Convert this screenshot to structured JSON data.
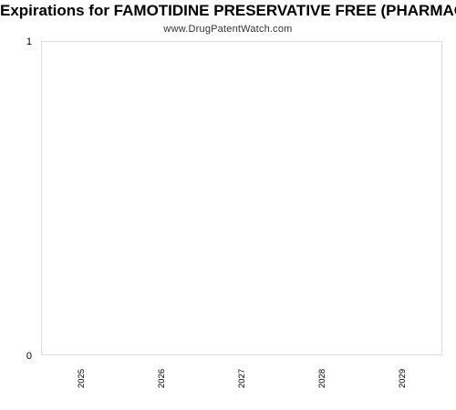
{
  "chart_data": {
    "type": "bar",
    "title": "Expirations for FAMOTIDINE PRESERVATIVE FREE (PHARMACY BULK)",
    "subtitle": "www.DrugPatentWatch.com",
    "categories": [
      "2025",
      "2026",
      "2027",
      "2028",
      "2029"
    ],
    "values": [
      0,
      0,
      0,
      0,
      0
    ],
    "ylim": [
      0,
      1
    ],
    "y_ticks": [
      "0",
      "1"
    ],
    "xlabel": "",
    "ylabel": "",
    "grid": false,
    "legend": "none",
    "colors": {
      "frame": "#dddddd",
      "text": "#000000",
      "subtitle": "#333333"
    }
  }
}
